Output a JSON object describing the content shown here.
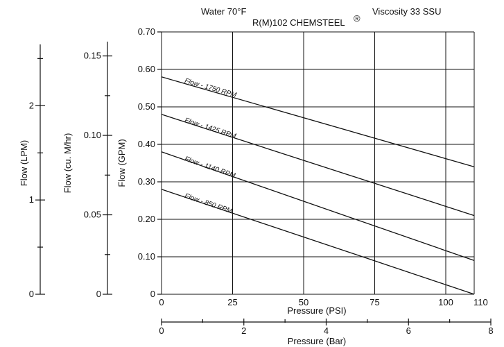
{
  "chart_data": {
    "type": "line",
    "header": {
      "left": "Water 70°F",
      "right": "Viscosity 33 SSU",
      "model": "R(M)102 CHEMSTEEL",
      "model_mark": "®"
    },
    "x": {
      "label": "Pressure (PSI)",
      "range": [
        0,
        110
      ],
      "ticks": [
        0,
        25,
        50,
        75,
        100,
        110
      ],
      "grid": [
        0,
        25,
        50,
        75,
        100,
        110
      ]
    },
    "x_secondary": {
      "label": "Pressure (Bar)",
      "range": [
        0,
        8
      ],
      "ticks": [
        0,
        2,
        4,
        6,
        8
      ],
      "minor_ticks": [
        1,
        3,
        5,
        7
      ]
    },
    "y": {
      "label": "Flow (GPM)",
      "range": [
        0,
        0.7
      ],
      "ticks": [
        "0",
        "0.10",
        "0.20",
        "0.30",
        "0.40",
        "0.50",
        "0.60",
        "0.70"
      ],
      "tick_values": [
        0,
        0.1,
        0.2,
        0.3,
        0.4,
        0.5,
        0.6,
        0.7
      ],
      "grid": [
        0,
        0.1,
        0.2,
        0.3,
        0.4,
        0.5,
        0.6,
        0.7
      ]
    },
    "y_secondary_m3": {
      "label": "Flow (cu. M/hr)",
      "range": [
        0,
        0.159
      ],
      "ticks": [
        "0",
        "0.05",
        "0.10",
        "0.15"
      ],
      "tick_values": [
        0,
        0.05,
        0.1,
        0.15
      ],
      "minor_ticks": [
        0.025,
        0.075,
        0.125
      ]
    },
    "y_secondary_lpm": {
      "label": "Flow (LPM)",
      "range": [
        0,
        2.65
      ],
      "ticks": [
        "0",
        "1",
        "2"
      ],
      "tick_values": [
        0,
        1,
        2
      ],
      "minor_ticks": [
        0.5,
        1.5,
        2.5
      ]
    },
    "series": [
      {
        "name": "Flow - 1750 RPM",
        "points": [
          [
            0,
            0.58
          ],
          [
            110,
            0.34
          ]
        ],
        "label_at": [
          8,
          0.565
        ]
      },
      {
        "name": "Flow - 1425 RPM",
        "points": [
          [
            0,
            0.48
          ],
          [
            110,
            0.21
          ]
        ],
        "label_at": [
          8,
          0.46
        ]
      },
      {
        "name": "Flow - 1140 RPM",
        "points": [
          [
            0,
            0.38
          ],
          [
            110,
            0.09
          ]
        ],
        "label_at": [
          8,
          0.357
        ]
      },
      {
        "name": "Flow - 850 RPM",
        "points": [
          [
            0,
            0.28
          ],
          [
            110,
            0.0
          ]
        ],
        "label_at": [
          8,
          0.258
        ]
      }
    ],
    "grid": true
  }
}
